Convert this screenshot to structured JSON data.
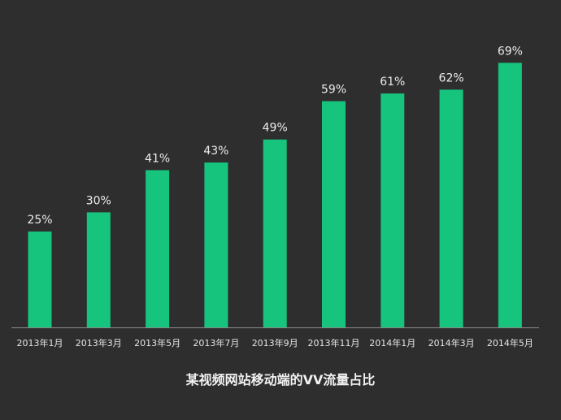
{
  "chart_data": {
    "type": "bar",
    "title": "某视频网站移动端的VV流量占比",
    "categories": [
      "2013年1月",
      "2013年3月",
      "2013年5月",
      "2013年7月",
      "2013年9月",
      "2013年11月",
      "2014年1月",
      "2014年3月",
      "2014年5月"
    ],
    "values": [
      25,
      30,
      41,
      43,
      49,
      59,
      61,
      62,
      69
    ],
    "data_labels": [
      "25%",
      "30%",
      "41%",
      "43%",
      "49%",
      "59%",
      "61%",
      "62%",
      "69%"
    ],
    "unit": "%",
    "xlabel": "",
    "ylabel": "",
    "ylim": [
      0,
      100
    ],
    "grid": false,
    "legend": "none",
    "colors": {
      "bar": "#16c47e",
      "background": "#2e2e2e",
      "axis": "#8a8a8a"
    }
  }
}
